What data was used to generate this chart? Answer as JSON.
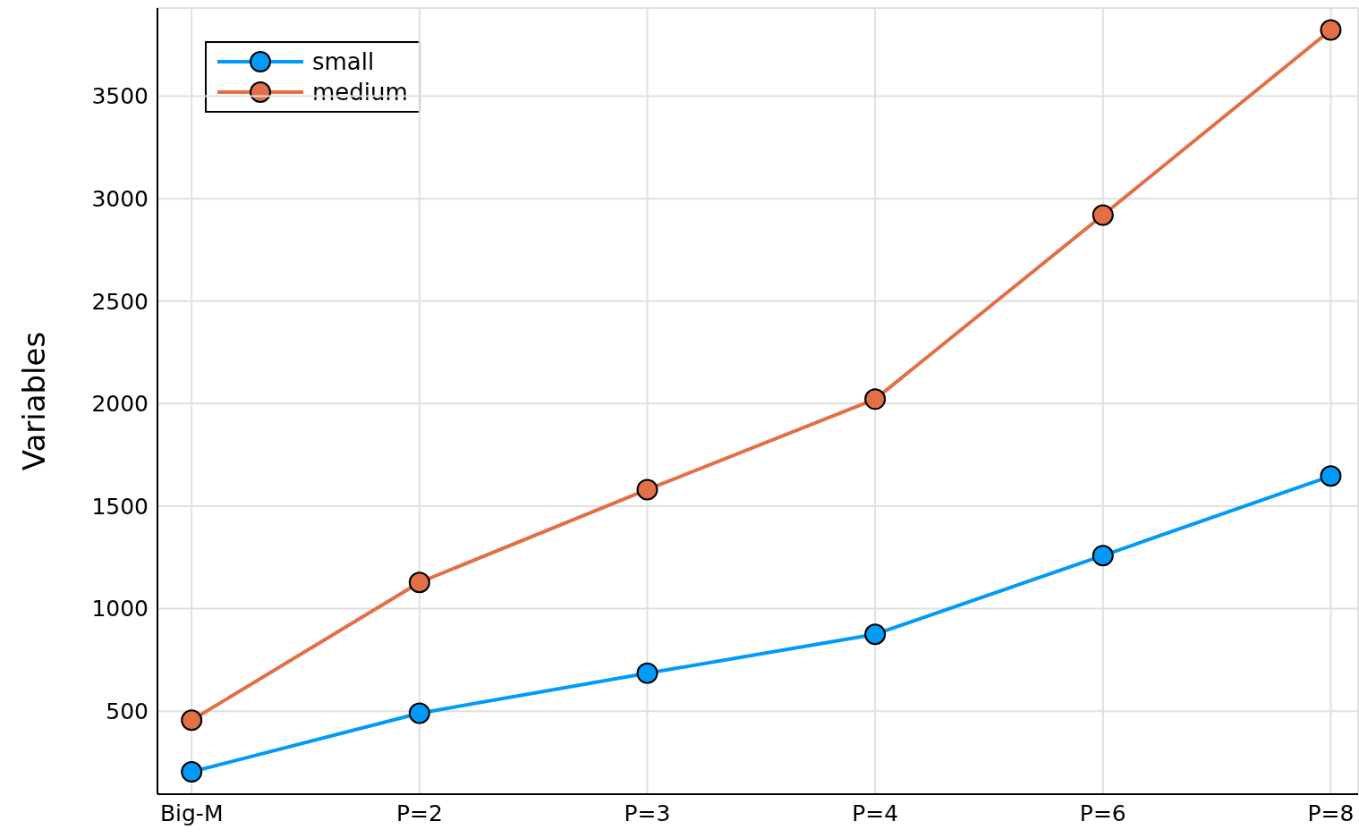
{
  "chart_data": {
    "type": "line",
    "ylabel": "Variables",
    "categories": [
      "Big-M",
      "P=2",
      "P=3",
      "P=4",
      "P=6",
      "P=8"
    ],
    "series": [
      {
        "name": "small",
        "color": "#009af9",
        "values": [
          204,
          490,
          685,
          875,
          1259,
          1647
        ]
      },
      {
        "name": "medium",
        "color": "#e26f46",
        "values": [
          456,
          1128,
          1581,
          2022,
          2920,
          3823
        ]
      }
    ],
    "ylim": [
      95,
      3930
    ],
    "yticks": [
      500,
      1000,
      1500,
      2000,
      2500,
      3000,
      3500
    ],
    "grid": true,
    "legend": "top left",
    "marker": "circle",
    "line_style": "solid"
  }
}
